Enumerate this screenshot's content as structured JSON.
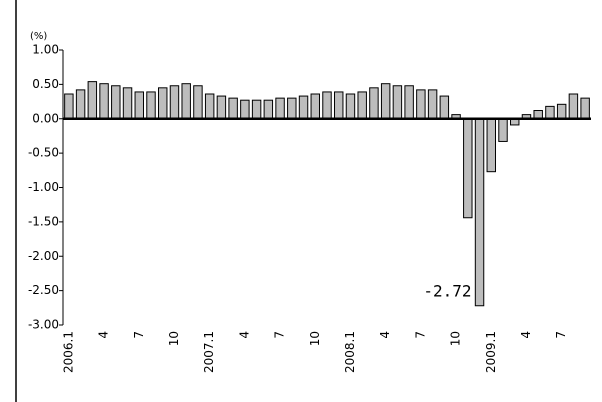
{
  "chart_data": {
    "type": "bar",
    "y_label": "(%)",
    "categories": [
      "2006.1",
      null,
      null,
      "4",
      null,
      null,
      "7",
      null,
      null,
      "10",
      null,
      null,
      "2007.1",
      null,
      null,
      "4",
      null,
      null,
      "7",
      null,
      null,
      "10",
      null,
      null,
      "2008.1",
      null,
      null,
      "4",
      null,
      null,
      "7",
      null,
      null,
      "10",
      null,
      null,
      "2009.1",
      null,
      null,
      "4",
      null,
      null,
      "7",
      null,
      null
    ],
    "values": [
      0.36,
      0.42,
      0.54,
      0.51,
      0.48,
      0.45,
      0.39,
      0.39,
      0.45,
      0.48,
      0.51,
      0.48,
      0.36,
      0.33,
      0.3,
      0.27,
      0.27,
      0.27,
      0.3,
      0.3,
      0.33,
      0.36,
      0.39,
      0.39,
      0.36,
      0.39,
      0.45,
      0.51,
      0.48,
      0.48,
      0.42,
      0.42,
      0.33,
      0.06,
      -1.44,
      -2.72,
      -0.77,
      -0.33,
      -0.09,
      0.06,
      0.12,
      0.18,
      0.21,
      0.36,
      0.3
    ],
    "color": "#bdbdbd",
    "ylim": [
      -3,
      1
    ],
    "yticks": [
      {
        "value": 1,
        "label": "1.00"
      },
      {
        "value": 0.5,
        "label": "0.50"
      },
      {
        "value": 0,
        "label": "0.00"
      },
      {
        "value": -0.5,
        "label": "-0.50"
      },
      {
        "value": -1,
        "label": "-1.00"
      },
      {
        "value": -1.5,
        "label": "-1.50"
      },
      {
        "value": -2,
        "label": "-2.00"
      },
      {
        "value": -2.5,
        "label": "-2.50"
      },
      {
        "value": -3,
        "label": "-3.00"
      }
    ],
    "annotated_index": 35
  }
}
